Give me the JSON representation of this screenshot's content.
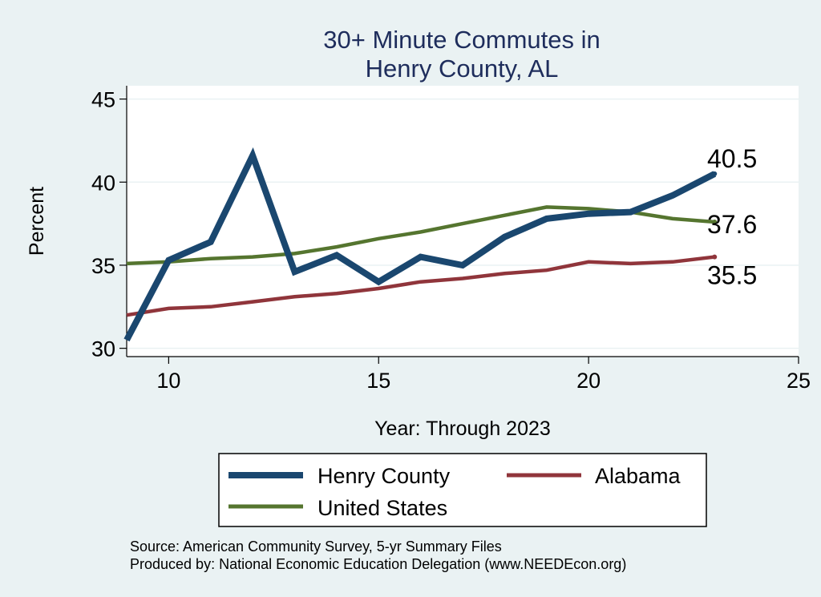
{
  "chart_data": {
    "type": "line",
    "title_lines": [
      "30+ Minute Commutes in",
      "Henry County, AL"
    ],
    "xlabel": "Year: Through 2023",
    "ylabel": "Percent",
    "xlim": [
      9,
      25
    ],
    "ylim": [
      29.5,
      45.8
    ],
    "xticks": [
      10,
      15,
      20,
      25
    ],
    "yticks": [
      30,
      35,
      40,
      45
    ],
    "grid": "horizontal",
    "legend_position": "bottom",
    "x": [
      9,
      10,
      11,
      12,
      13,
      14,
      15,
      16,
      17,
      18,
      19,
      20,
      21,
      22,
      23
    ],
    "series": [
      {
        "name": "Henry County",
        "color": "#1a476f",
        "values": [
          30.5,
          35.3,
          36.4,
          41.6,
          34.6,
          35.6,
          34.0,
          35.5,
          35.0,
          36.7,
          37.8,
          38.1,
          38.2,
          39.2,
          40.5
        ],
        "end_label": "40.5"
      },
      {
        "name": "Alabama",
        "color": "#90353b",
        "values": [
          32.0,
          32.4,
          32.5,
          32.8,
          33.1,
          33.3,
          33.6,
          34.0,
          34.2,
          34.5,
          34.7,
          35.2,
          35.1,
          35.2,
          35.5
        ],
        "end_label": "35.5"
      },
      {
        "name": "United States",
        "color": "#55752f",
        "values": [
          35.1,
          35.2,
          35.4,
          35.5,
          35.7,
          36.1,
          36.6,
          37.0,
          37.5,
          38.0,
          38.5,
          38.4,
          38.2,
          37.8,
          37.6
        ],
        "end_label": "37.6"
      }
    ],
    "source_lines": [
      "Source: American Community Survey, 5-yr Summary Files",
      "Produced by: National Economic Education Delegation (www.NEEDEcon.org)"
    ]
  }
}
